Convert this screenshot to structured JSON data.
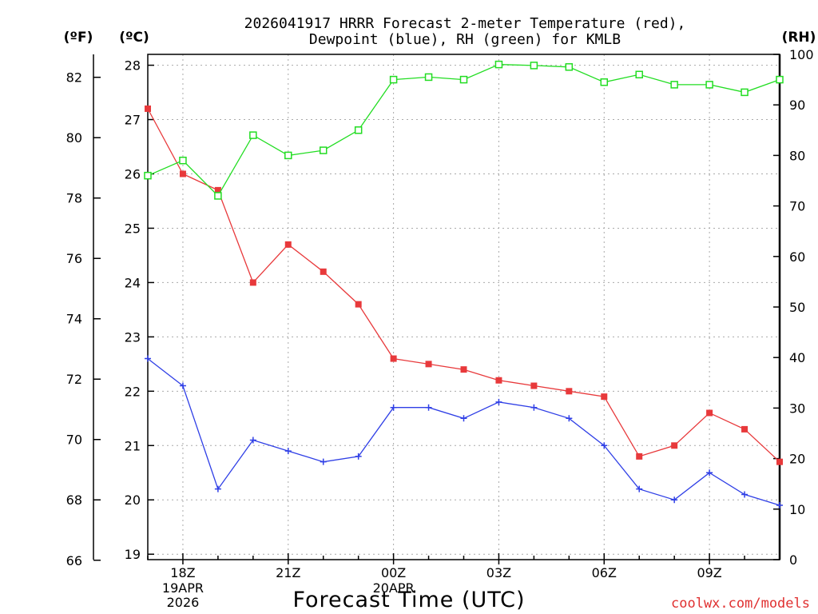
{
  "chart_data": {
    "type": "line",
    "title_lines": [
      "2026041917 HRRR Forecast 2-meter Temperature (red),",
      "Dewpoint (blue), RH (green) for KMLB"
    ],
    "unit_labels": {
      "fahrenheit": "(ºF)",
      "celsius": "(ºC)",
      "rh": "(RH)"
    },
    "xlabel": "Forecast Time (UTC)",
    "credit": "coolwx.com/models",
    "x_range": [
      17,
      35
    ],
    "x_ticks": [
      {
        "x": 18,
        "label": "18Z"
      },
      {
        "x": 21,
        "label": "21Z"
      },
      {
        "x": 24,
        "label": "00Z"
      },
      {
        "x": 27,
        "label": "03Z"
      },
      {
        "x": 30,
        "label": "06Z"
      },
      {
        "x": 33,
        "label": "09Z"
      }
    ],
    "date_labels": [
      {
        "x": 18,
        "lines": [
          "19APR",
          "2026"
        ]
      },
      {
        "x": 24,
        "lines": [
          "20APR"
        ]
      }
    ],
    "celsius_axis": {
      "ylim": [
        18.9,
        28.2
      ],
      "ticks": [
        19,
        20,
        21,
        22,
        23,
        24,
        25,
        26,
        27,
        28
      ]
    },
    "fahrenheit_axis": {
      "ylim": [
        66.02,
        82.76
      ],
      "ticks": [
        66,
        68,
        70,
        72,
        74,
        76,
        78,
        80,
        82
      ]
    },
    "rh_axis": {
      "ylim": [
        0,
        100
      ],
      "ticks": [
        0,
        10,
        20,
        30,
        40,
        50,
        60,
        70,
        80,
        90,
        100
      ]
    },
    "x": [
      17,
      18,
      19,
      20,
      21,
      22,
      23,
      24,
      25,
      26,
      27,
      28,
      29,
      30,
      31,
      32,
      33,
      34,
      35
    ],
    "series": [
      {
        "name": "Temperature",
        "units": "C",
        "color": "#e8393b",
        "marker": "filled-square",
        "values": [
          27.2,
          26.0,
          25.7,
          24.0,
          24.7,
          24.2,
          23.6,
          22.6,
          22.5,
          22.4,
          22.2,
          22.1,
          22.0,
          21.9,
          20.8,
          21.0,
          21.6,
          21.3,
          20.7
        ]
      },
      {
        "name": "Dewpoint",
        "units": "C",
        "color": "#2f3fe6",
        "marker": "plus",
        "values": [
          22.6,
          22.1,
          20.2,
          21.1,
          20.9,
          20.7,
          20.8,
          21.7,
          21.7,
          21.5,
          21.8,
          21.7,
          21.5,
          21.0,
          20.2,
          20.0,
          20.5,
          20.1,
          19.9
        ]
      },
      {
        "name": "RH",
        "units": "%",
        "color": "#22dd22",
        "marker": "open-square",
        "values": [
          76,
          79,
          72,
          84,
          80,
          81,
          85,
          95,
          95.5,
          95,
          98,
          97.8,
          97.5,
          94.5,
          96,
          94,
          94,
          92.5,
          95
        ]
      }
    ]
  }
}
